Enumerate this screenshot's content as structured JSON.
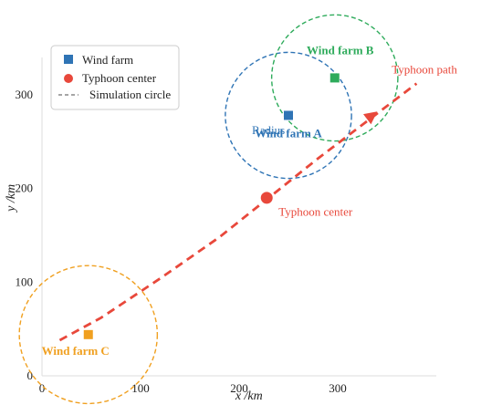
{
  "chart_data": {
    "type": "scatter",
    "xlabel": "x /km",
    "ylabel": "y /km",
    "xlim": [
      -5,
      400
    ],
    "ylim": [
      -5,
      340
    ],
    "grid": false,
    "legend_position": "top-left",
    "x_ticks": [
      0,
      100,
      200,
      300
    ],
    "y_ticks": [
      0,
      100,
      200,
      300
    ],
    "typhoon_path": {
      "name": "Typhoon path",
      "color": "#e8483b",
      "points": [
        [
          18,
          38
        ],
        [
          60,
          62
        ],
        [
          120,
          104
        ],
        [
          180,
          148
        ],
        [
          230,
          190
        ],
        [
          280,
          232
        ],
        [
          330,
          272
        ],
        [
          380,
          312
        ]
      ],
      "arrow_at": [
        335,
        278
      ]
    },
    "typhoon_center": {
      "name": "Typhoon center",
      "x": 228,
      "y": 190,
      "color": "#e8483b"
    },
    "wind_farms": [
      {
        "name": "Wind farm A",
        "x": 250,
        "y": 278,
        "color": "#2f74b5",
        "circle_radius": 64
      },
      {
        "name": "Wind farm B",
        "x": 297,
        "y": 318,
        "color": "#2eab5b",
        "circle_radius": 64
      },
      {
        "name": "Wind farm C",
        "x": 47,
        "y": 44,
        "color": "#f0a020",
        "circle_radius": 70
      }
    ],
    "annotations": [
      {
        "text": "Radius",
        "color": "#2f74b5"
      },
      {
        "text": "Typhoon center",
        "color": "#e8483b"
      },
      {
        "text": "Typhoon path",
        "color": "#e8483b"
      }
    ],
    "legend": [
      {
        "label": "Wind farm",
        "marker": "square",
        "color": "#2f74b5"
      },
      {
        "label": "Typhoon center",
        "marker": "circle",
        "color": "#e8483b"
      },
      {
        "label": "Simulation circle",
        "marker": "dashed-line",
        "color": "#888888"
      }
    ]
  }
}
